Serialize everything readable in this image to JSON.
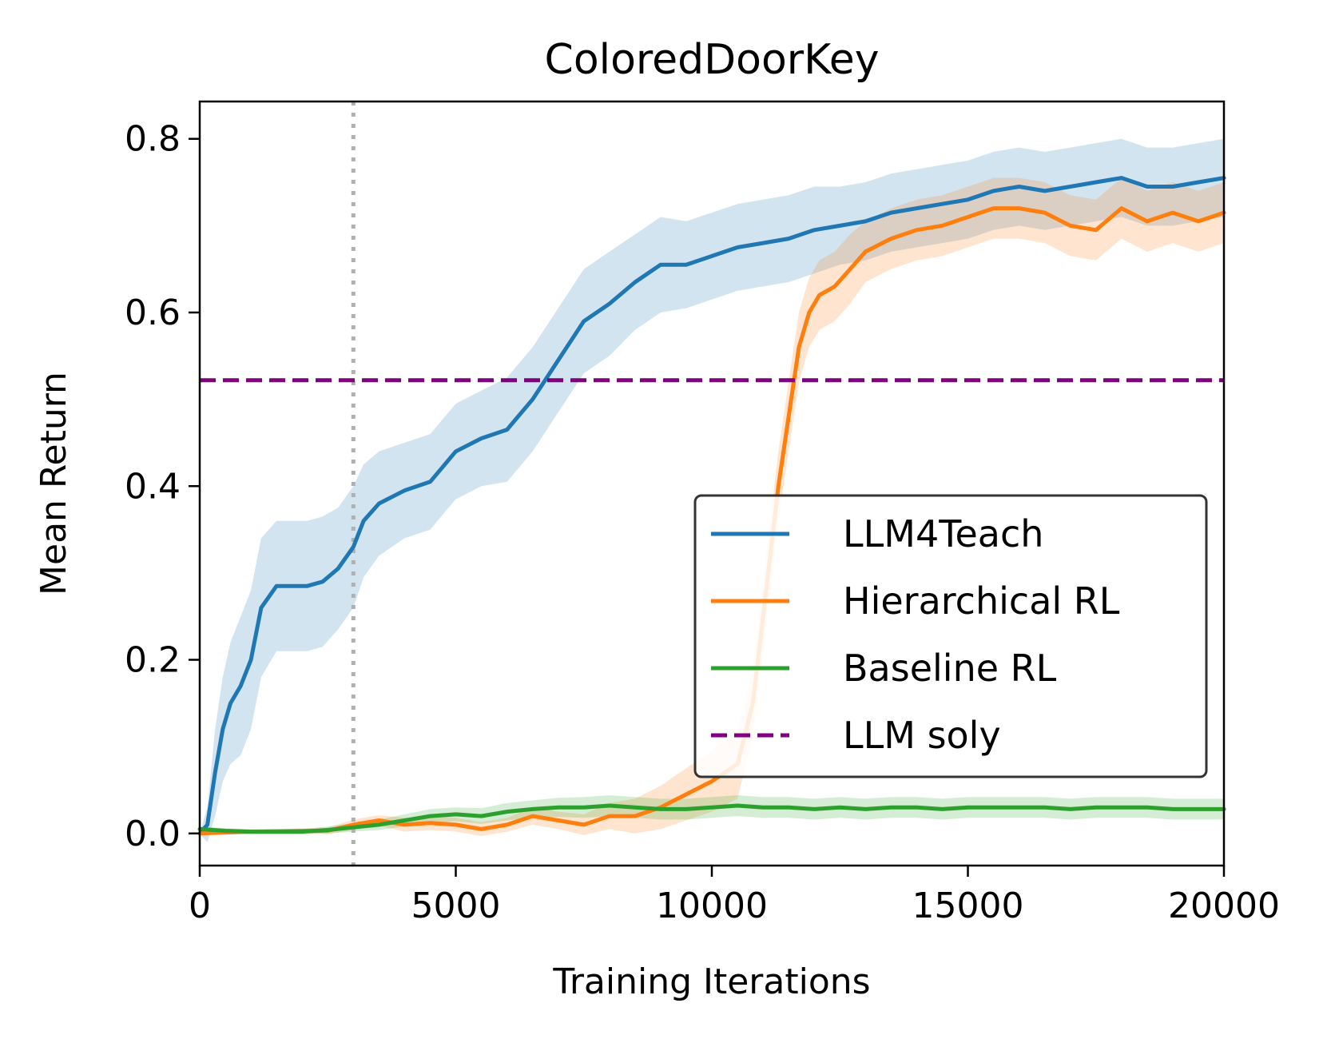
{
  "colors": {
    "llm4teach": "#1f77b4",
    "hierarchical": "#ff7f0e",
    "baseline": "#2ca02c",
    "llm_soly": "#800080",
    "vline": "#b0b0b0"
  },
  "chart_data": {
    "type": "line",
    "title": "ColoredDoorKey",
    "xlabel": "Training Iterations",
    "ylabel": "Mean Return",
    "xlim": [
      0,
      20000
    ],
    "ylim": [
      -0.037,
      0.843
    ],
    "xticks": [
      0,
      5000,
      10000,
      15000,
      20000
    ],
    "xtick_labels": [
      "0",
      "5000",
      "10000",
      "15000",
      "20000"
    ],
    "yticks": [
      0.0,
      0.2,
      0.4,
      0.6,
      0.8
    ],
    "ytick_labels": [
      "0.0",
      "0.2",
      "0.4",
      "0.6",
      "0.8"
    ],
    "vline_x": 3000,
    "legend_position": "center-right",
    "series": [
      {
        "name": "LLM4Teach",
        "key": "llm4teach",
        "x": [
          0,
          150,
          300,
          450,
          600,
          800,
          1000,
          1200,
          1500,
          1800,
          2100,
          2400,
          2700,
          3000,
          3200,
          3500,
          4000,
          4500,
          5000,
          5500,
          6000,
          6500,
          7000,
          7500,
          8000,
          8500,
          9000,
          9500,
          10000,
          10500,
          11000,
          11500,
          12000,
          12500,
          13000,
          13500,
          14000,
          14500,
          15000,
          15500,
          16000,
          16500,
          17000,
          17500,
          18000,
          18500,
          19000,
          19500,
          20000
        ],
        "y": [
          0.0,
          0.01,
          0.07,
          0.12,
          0.15,
          0.17,
          0.2,
          0.26,
          0.285,
          0.285,
          0.285,
          0.29,
          0.305,
          0.33,
          0.36,
          0.38,
          0.395,
          0.405,
          0.44,
          0.455,
          0.465,
          0.5,
          0.545,
          0.59,
          0.61,
          0.635,
          0.655,
          0.655,
          0.665,
          0.675,
          0.68,
          0.685,
          0.695,
          0.7,
          0.705,
          0.715,
          0.72,
          0.725,
          0.73,
          0.74,
          0.745,
          0.74,
          0.745,
          0.75,
          0.755,
          0.745,
          0.745,
          0.75,
          0.755
        ],
        "band": [
          0.0,
          0.02,
          0.05,
          0.06,
          0.07,
          0.08,
          0.08,
          0.08,
          0.075,
          0.075,
          0.075,
          0.075,
          0.07,
          0.07,
          0.065,
          0.06,
          0.055,
          0.055,
          0.055,
          0.055,
          0.06,
          0.06,
          0.06,
          0.06,
          0.06,
          0.055,
          0.055,
          0.05,
          0.05,
          0.05,
          0.05,
          0.05,
          0.05,
          0.045,
          0.045,
          0.045,
          0.045,
          0.045,
          0.045,
          0.045,
          0.045,
          0.045,
          0.045,
          0.045,
          0.045,
          0.045,
          0.045,
          0.045,
          0.045
        ]
      },
      {
        "name": "Hierarchical RL",
        "key": "hierarchical",
        "x": [
          0,
          1000,
          2000,
          2500,
          3000,
          3500,
          4000,
          4500,
          5000,
          5500,
          6000,
          6500,
          7000,
          7500,
          8000,
          8500,
          9000,
          9500,
          10000,
          10500,
          10800,
          11100,
          11300,
          11500,
          11700,
          11900,
          12100,
          12400,
          12700,
          13000,
          13500,
          14000,
          14500,
          15000,
          15500,
          16000,
          16500,
          17000,
          17500,
          18000,
          18500,
          19000,
          19500,
          20000
        ],
        "y": [
          0.0,
          0.002,
          0.003,
          0.003,
          0.01,
          0.015,
          0.01,
          0.012,
          0.01,
          0.005,
          0.01,
          0.02,
          0.015,
          0.01,
          0.02,
          0.02,
          0.03,
          0.045,
          0.06,
          0.08,
          0.15,
          0.3,
          0.4,
          0.48,
          0.56,
          0.6,
          0.62,
          0.63,
          0.65,
          0.67,
          0.685,
          0.695,
          0.7,
          0.71,
          0.72,
          0.72,
          0.715,
          0.7,
          0.695,
          0.72,
          0.705,
          0.715,
          0.705,
          0.715
        ],
        "band": [
          0.0,
          0.002,
          0.003,
          0.004,
          0.006,
          0.006,
          0.008,
          0.008,
          0.008,
          0.008,
          0.008,
          0.01,
          0.01,
          0.012,
          0.015,
          0.02,
          0.025,
          0.03,
          0.035,
          0.04,
          0.04,
          0.04,
          0.04,
          0.04,
          0.04,
          0.04,
          0.04,
          0.04,
          0.04,
          0.035,
          0.035,
          0.035,
          0.035,
          0.035,
          0.035,
          0.035,
          0.035,
          0.035,
          0.035,
          0.035,
          0.035,
          0.035,
          0.035,
          0.035
        ]
      },
      {
        "name": "Baseline RL",
        "key": "baseline",
        "x": [
          0,
          500,
          1000,
          1500,
          2000,
          2500,
          3000,
          3500,
          4000,
          4500,
          5000,
          5500,
          6000,
          6500,
          7000,
          7500,
          8000,
          8500,
          9000,
          9500,
          10000,
          10500,
          11000,
          11500,
          12000,
          12500,
          13000,
          13500,
          14000,
          14500,
          15000,
          15500,
          16000,
          16500,
          17000,
          17500,
          18000,
          18500,
          19000,
          19500,
          20000
        ],
        "y": [
          0.005,
          0.003,
          0.002,
          0.002,
          0.002,
          0.004,
          0.007,
          0.01,
          0.015,
          0.02,
          0.022,
          0.02,
          0.025,
          0.028,
          0.03,
          0.03,
          0.032,
          0.03,
          0.028,
          0.028,
          0.03,
          0.032,
          0.03,
          0.03,
          0.028,
          0.03,
          0.028,
          0.03,
          0.03,
          0.028,
          0.03,
          0.03,
          0.03,
          0.03,
          0.028,
          0.03,
          0.03,
          0.03,
          0.028,
          0.028,
          0.028
        ],
        "band": [
          0.003,
          0.003,
          0.003,
          0.003,
          0.003,
          0.004,
          0.005,
          0.006,
          0.007,
          0.008,
          0.008,
          0.009,
          0.01,
          0.01,
          0.011,
          0.012,
          0.012,
          0.012,
          0.012,
          0.012,
          0.012,
          0.012,
          0.012,
          0.012,
          0.012,
          0.012,
          0.012,
          0.012,
          0.012,
          0.012,
          0.012,
          0.012,
          0.012,
          0.012,
          0.012,
          0.012,
          0.012,
          0.012,
          0.012,
          0.012,
          0.012
        ]
      }
    ],
    "hline": {
      "name": "LLM soly",
      "key": "llm_soly",
      "y": 0.522,
      "style": "dashed"
    }
  }
}
